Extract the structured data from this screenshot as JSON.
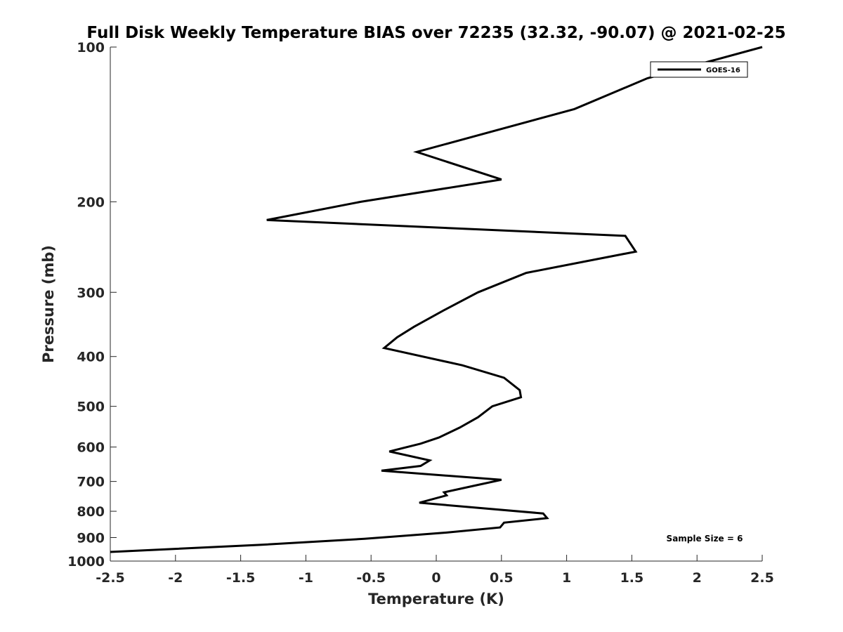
{
  "chart_data": {
    "type": "line",
    "title": "Full Disk Weekly Temperature BIAS over 72235 (32.32, -90.07) @ 2021-02-25",
    "xlabel": "Temperature (K)",
    "ylabel": "Pressure (mb)",
    "xlim": [
      -2.5,
      2.5
    ],
    "ylim": [
      1000,
      100
    ],
    "y_scale": "log",
    "y_reversed": true,
    "grid": false,
    "legend_position": "top-right",
    "x_ticks": [
      "-2.5",
      "-2",
      "-1.5",
      "-1",
      "-0.5",
      "0",
      "0.5",
      "1",
      "1.5",
      "2",
      "2.5"
    ],
    "y_ticks": [
      "100",
      "200",
      "300",
      "400",
      "500",
      "600",
      "700",
      "800",
      "900",
      "1000"
    ],
    "series": [
      {
        "name": "GOES-16",
        "color": "#000000",
        "x": [
          2.5,
          1.62,
          1.06,
          -0.15,
          0.5,
          -0.58,
          -1.3,
          1.45,
          1.53,
          0.69,
          0.32,
          0.06,
          -0.17,
          -0.3,
          -0.4,
          0.2,
          0.52,
          0.64,
          0.65,
          0.43,
          0.32,
          0.18,
          0.02,
          -0.12,
          -0.36,
          -0.05,
          -0.12,
          -0.42,
          0.5,
          0.33,
          0.06,
          0.08,
          -0.13,
          0.82,
          0.85,
          0.52,
          0.49,
          0.08,
          -0.55,
          -1.35,
          -2.5
        ],
        "y": [
          100,
          115,
          132,
          160,
          181,
          200,
          217,
          233,
          250,
          275,
          300,
          325,
          350,
          367,
          385,
          416,
          440,
          465,
          480,
          500,
          525,
          550,
          575,
          591,
          612,
          637,
          653,
          667,
          695,
          710,
          735,
          745,
          770,
          808,
          825,
          842,
          860,
          880,
          905,
          930,
          960
        ]
      }
    ],
    "annotations": [
      "Sample Size = 6"
    ]
  }
}
